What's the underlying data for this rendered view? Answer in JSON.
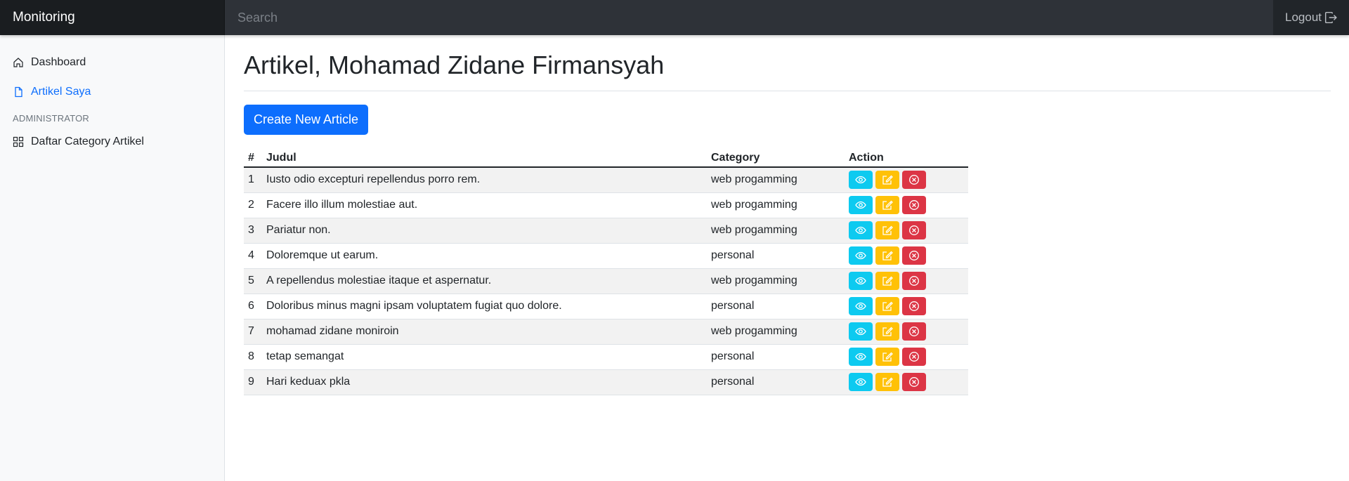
{
  "topbar": {
    "brand": "Monitoring",
    "search_placeholder": "Search",
    "logout_label": "Logout"
  },
  "sidebar": {
    "items": [
      {
        "label": "Dashboard",
        "icon": "home-icon",
        "active": false
      },
      {
        "label": "Artikel Saya",
        "icon": "file-icon",
        "active": true
      }
    ],
    "admin_heading": "ADMINISTRATOR",
    "admin_items": [
      {
        "label": "Daftar Category Artikel",
        "icon": "grid-icon"
      }
    ]
  },
  "main": {
    "title": "Artikel, Mohamad Zidane Firmansyah",
    "create_button": "Create New Article",
    "table": {
      "headers": [
        "#",
        "Judul",
        "Category",
        "Action"
      ],
      "rows": [
        {
          "num": "1",
          "judul": "Iusto odio excepturi repellendus porro rem.",
          "category": "web progamming"
        },
        {
          "num": "2",
          "judul": "Facere illo illum molestiae aut.",
          "category": "web progamming"
        },
        {
          "num": "3",
          "judul": "Pariatur non.",
          "category": "web progamming"
        },
        {
          "num": "4",
          "judul": "Doloremque ut earum.",
          "category": "personal"
        },
        {
          "num": "5",
          "judul": "A repellendus molestiae itaque et aspernatur.",
          "category": "web progamming"
        },
        {
          "num": "6",
          "judul": "Doloribus minus magni ipsam voluptatem fugiat quo dolore.",
          "category": "personal"
        },
        {
          "num": "7",
          "judul": "mohamad zidane moniroin",
          "category": "web progamming"
        },
        {
          "num": "8",
          "judul": "tetap semangat",
          "category": "personal"
        },
        {
          "num": "9",
          "judul": "Hari keduax pkla",
          "category": "personal"
        }
      ]
    }
  },
  "colors": {
    "primary": "#0d6efd",
    "info": "#0dcaf0",
    "warning": "#ffc107",
    "danger": "#dc3545",
    "dark": "#212529"
  }
}
